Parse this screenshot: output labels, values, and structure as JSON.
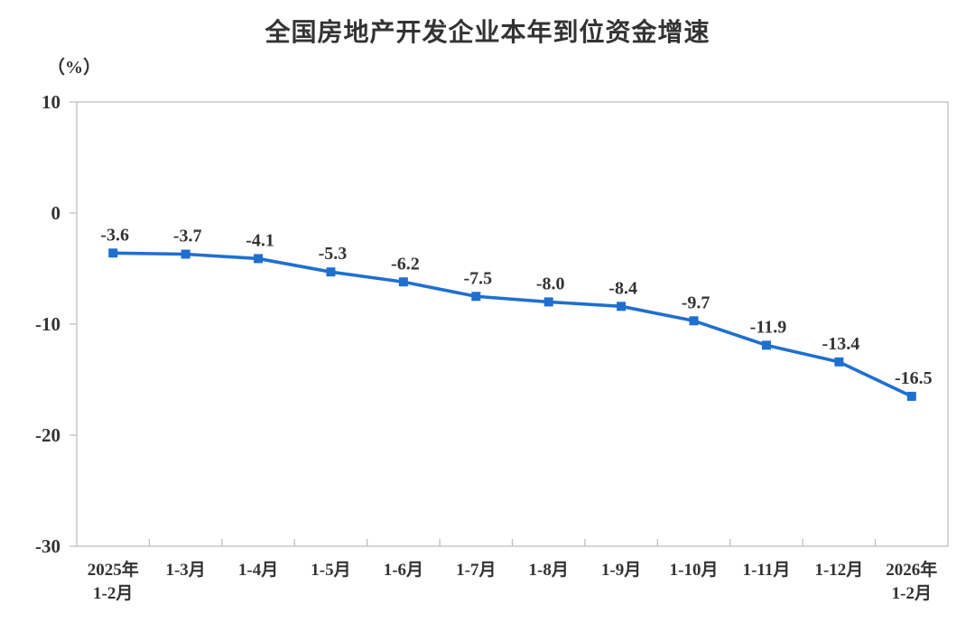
{
  "chart_data": {
    "type": "line",
    "title": "全国房地产开发企业本年到位资金增速",
    "ylabel": "（%）",
    "xlabel": "",
    "categories": [
      [
        "2025年",
        "1-2月"
      ],
      "1-3月",
      "1-4月",
      "1-5月",
      "1-6月",
      "1-7月",
      "1-8月",
      "1-9月",
      "1-10月",
      "1-11月",
      "1-12月",
      [
        "2026年",
        "1-2月"
      ]
    ],
    "values": [
      -3.6,
      -3.7,
      -4.1,
      -5.3,
      -6.2,
      -7.5,
      -8.0,
      -8.4,
      -9.7,
      -11.9,
      -13.4,
      -16.5
    ],
    "ylim": [
      -30,
      10
    ],
    "yticks": [
      10,
      0,
      -10,
      -20,
      -30
    ],
    "grid": false,
    "legend": "none",
    "marker": "square",
    "colors": {
      "line": "#1f6fd0",
      "marker": "#1f6fd0",
      "frame": "#bfbfbf",
      "text": "#333333"
    }
  }
}
